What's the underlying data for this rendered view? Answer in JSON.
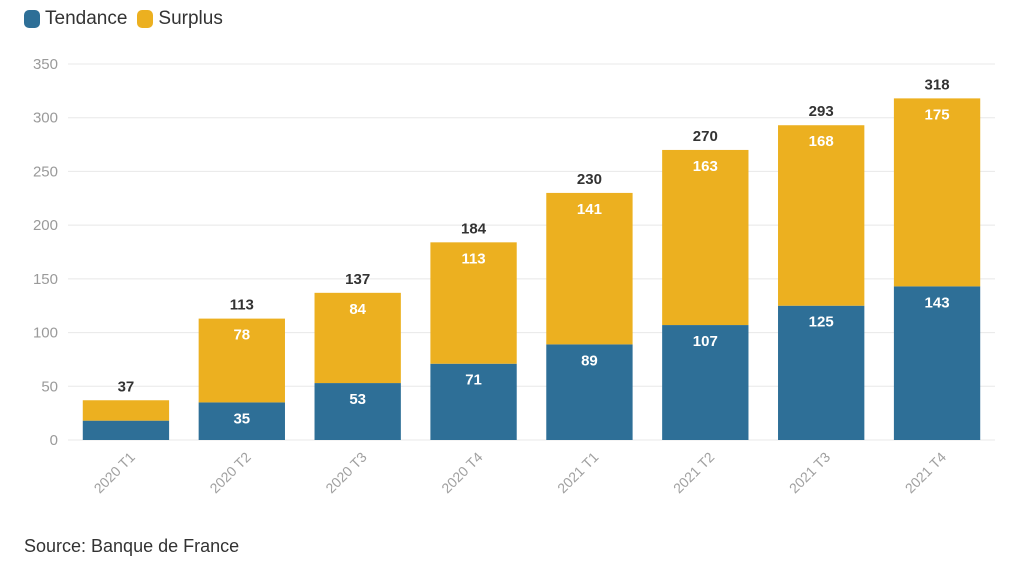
{
  "colors": {
    "tendance": "#2e6f97",
    "surplus": "#ecb020",
    "grid": "#e8e8e8"
  },
  "legend": {
    "items": [
      {
        "label": "Tendance",
        "color": "#2e6f97"
      },
      {
        "label": "Surplus",
        "color": "#ecb020"
      }
    ]
  },
  "source": "Source: Banque de France",
  "chart_data": {
    "type": "bar",
    "stacked": true,
    "categories": [
      "2020 T1",
      "2020 T2",
      "2020 T3",
      "2020 T4",
      "2021 T1",
      "2021 T2",
      "2021 T3",
      "2021 T4"
    ],
    "series": [
      {
        "name": "Tendance",
        "values": [
          18,
          35,
          53,
          71,
          89,
          107,
          125,
          143
        ],
        "labels": [
          "",
          "35",
          "53",
          "71",
          "89",
          "107",
          "125",
          "143"
        ]
      },
      {
        "name": "Surplus",
        "values": [
          19,
          78,
          84,
          113,
          141,
          163,
          168,
          175
        ],
        "labels": [
          "",
          "78",
          "84",
          "113",
          "141",
          "163",
          "168",
          "175"
        ]
      }
    ],
    "totals": [
      37,
      113,
      137,
      184,
      230,
      270,
      293,
      318
    ],
    "ylim": [
      0,
      350
    ],
    "yticks": [
      0,
      50,
      100,
      150,
      200,
      250,
      300,
      350
    ],
    "grid": true,
    "legend_position": "top-left",
    "title": "",
    "xlabel": "",
    "ylabel": ""
  }
}
